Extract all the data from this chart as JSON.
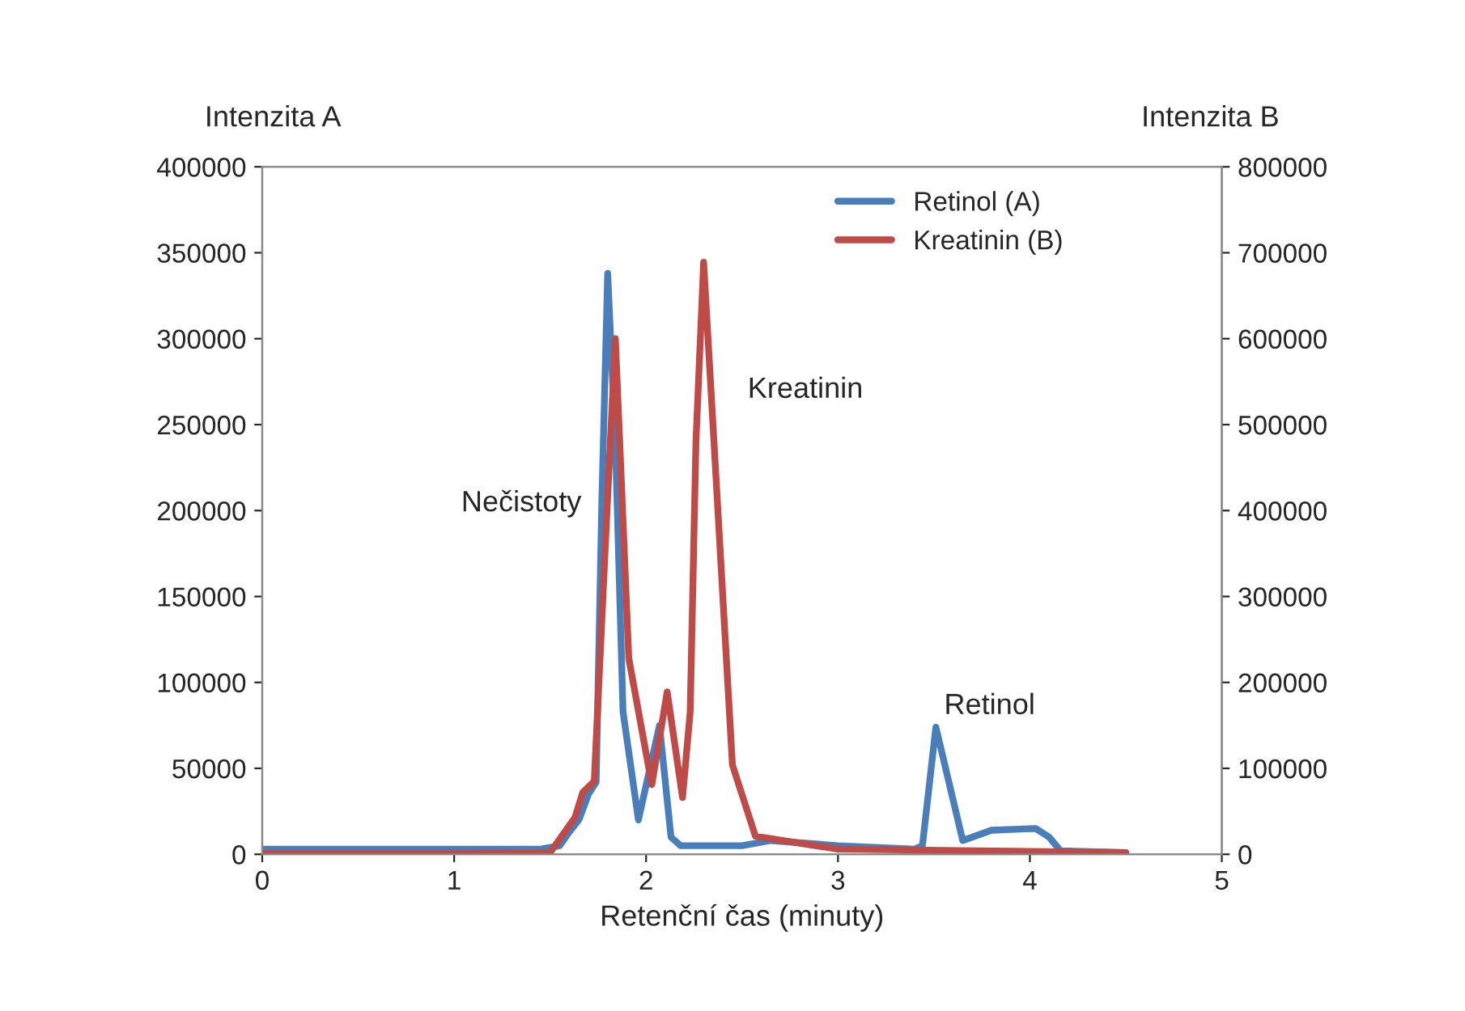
{
  "chart_data": {
    "type": "line",
    "xlabel": "Retenční čas (minuty)",
    "ylabel": "Intenzita A",
    "y2label": "Intenzita B",
    "xlim": [
      0,
      5
    ],
    "xticks": [
      0,
      1,
      2,
      3,
      4,
      5
    ],
    "ylim": [
      0,
      400000
    ],
    "yticks": [
      0,
      50000,
      100000,
      150000,
      200000,
      250000,
      300000,
      350000,
      400000
    ],
    "y2lim": [
      0,
      800000
    ],
    "y2ticks": [
      0,
      100000,
      200000,
      300000,
      400000,
      500000,
      600000,
      700000,
      800000
    ],
    "grid": false,
    "legend": "top right",
    "marker": "none",
    "line_style": "solid",
    "annotations": [
      "Nečistoty",
      "Kreatinin",
      "Retinol"
    ],
    "series": [
      {
        "name": "Retinol (A)",
        "color": "#4a7ebb",
        "x": [
          0,
          0.5,
          1.0,
          1.45,
          1.55,
          1.6,
          1.65,
          1.7,
          1.74,
          1.77,
          1.8,
          1.84,
          1.88,
          1.96,
          2.07,
          2.13,
          2.18,
          2.5,
          2.65,
          3.0,
          3.4,
          3.44,
          3.51,
          3.65,
          3.8,
          4.03,
          4.1,
          4.16,
          4.5
        ],
        "values": [
          3000,
          3000,
          3000,
          3000,
          5000,
          13000,
          20000,
          35000,
          42000,
          208000,
          338000,
          240000,
          83000,
          20000,
          75000,
          10000,
          5000,
          5000,
          8000,
          5000,
          3000,
          5000,
          74000,
          8000,
          14000,
          15000,
          10000,
          2000,
          1000
        ]
      },
      {
        "name": "Kreatinin (B)",
        "color": "#be4b48",
        "axis": "y2",
        "x": [
          0,
          1.0,
          1.5,
          1.63,
          1.67,
          1.73,
          1.8,
          1.84,
          1.91,
          2.03,
          2.11,
          2.19,
          2.23,
          2.26,
          2.3,
          2.37,
          2.45,
          2.57,
          3.0,
          4.5
        ],
        "values": [
          1000,
          1000,
          2000,
          43000,
          72000,
          85000,
          417000,
          600000,
          228000,
          81000,
          189000,
          66000,
          166000,
          481000,
          689000,
          417000,
          104000,
          21000,
          6000,
          2000
        ]
      }
    ]
  }
}
